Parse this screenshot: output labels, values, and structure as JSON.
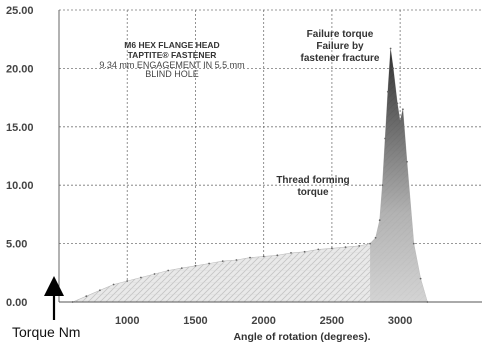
{
  "chart_data": {
    "type": "area",
    "xlabel": "Angle of rotation (degrees).",
    "ylabel": "Torque Nm",
    "xlim": [
      500,
      3600
    ],
    "ylim": [
      0,
      25
    ],
    "x_ticks": [
      1000,
      1500,
      2000,
      2500,
      3000
    ],
    "x_tick_labels": [
      "1000",
      "1500",
      "2000",
      "2500",
      "3000"
    ],
    "y_ticks": [
      0,
      5,
      10,
      15,
      20,
      25
    ],
    "y_tick_labels": [
      "0.00",
      "5.00",
      "10.00",
      "15.00",
      "20.00",
      "25.00"
    ],
    "grid": true,
    "annotations": {
      "fastener_title_1": "M6 HEX FLANGE HEAD",
      "fastener_title_2": "TAPTITE® FASTENER",
      "fastener_detail_1": "9.34 mm ENGAGEMENT IN 5.5 mm",
      "fastener_detail_2": "BLIND HOLE",
      "failure_1": "Failure torque",
      "failure_2": "Failure by",
      "failure_3": "fastener fracture",
      "thread_1": "Thread forming",
      "thread_2": "torque"
    },
    "series": [
      {
        "x": [
          600,
          700,
          800,
          900,
          1000,
          1100,
          1200,
          1300,
          1400,
          1500,
          1600,
          1700,
          1800,
          1900,
          2000,
          2100,
          2200,
          2300,
          2400,
          2500,
          2600,
          2700,
          2780,
          2820,
          2850,
          2870,
          2890,
          2910,
          2930,
          2950,
          2980,
          3000,
          3020,
          3050,
          3100,
          3150,
          3200
        ],
        "y": [
          0,
          0.5,
          1.0,
          1.5,
          1.8,
          2.1,
          2.4,
          2.7,
          2.9,
          3.1,
          3.3,
          3.5,
          3.6,
          3.8,
          3.9,
          4.0,
          4.2,
          4.3,
          4.5,
          4.6,
          4.7,
          4.8,
          5.0,
          5.5,
          7.0,
          10.0,
          14.0,
          18.0,
          21.7,
          20.0,
          17.0,
          15.5,
          16.5,
          12.0,
          5.0,
          2.0,
          0
        ]
      }
    ]
  }
}
